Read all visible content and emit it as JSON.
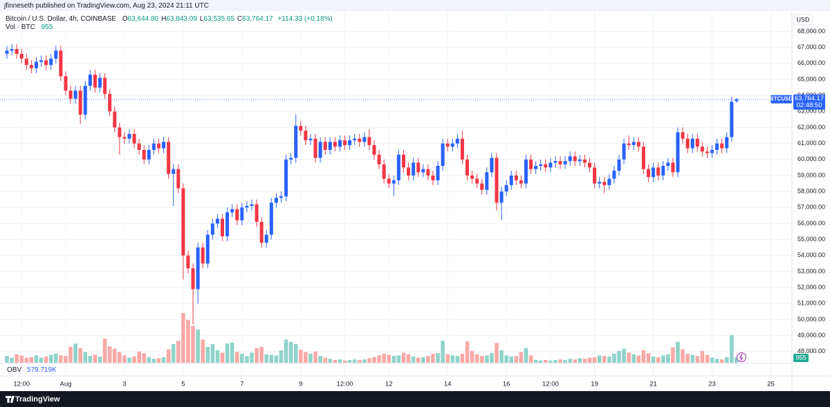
{
  "header": {
    "publisher": "jfinneseth published on TradingView.com, Aug 23, 2024 21:11 UTC"
  },
  "chart_data": {
    "type": "candlestick",
    "title": "Bitcoin / U.S. Dollar, 4h, COINBASE",
    "ohlc_labels": [
      {
        "key": "O",
        "value": "63,644.80"
      },
      {
        "key": "H",
        "value": "63,843.09"
      },
      {
        "key": "L",
        "value": "63,535.65"
      },
      {
        "key": "C",
        "value": "63,764.17"
      }
    ],
    "change_label": "+114.33 (+0.18%)",
    "currency": "USD",
    "symbol": "BTCUSD",
    "last_price_label": "63,764.17",
    "countdown": "02:48:50",
    "up_color": "#2962ff",
    "down_color": "#f23645",
    "grid": true,
    "open": [
      66600,
      66800,
      66900,
      66600,
      66300,
      65900,
      65700,
      66100,
      66200,
      65900,
      66300,
      66800,
      65200,
      64300,
      63800,
      64300,
      62800,
      64600,
      65300,
      64500,
      65100,
      64100,
      63000,
      62000,
      61400,
      61300,
      61600,
      61000,
      60600,
      60000,
      60600,
      61000,
      60700,
      61100,
      59100,
      59400,
      58200,
      54000,
      53200,
      51900,
      54500,
      53500,
      55300,
      56000,
      56300,
      55200,
      56700,
      56900,
      56200,
      57000,
      57100,
      57200,
      56100,
      54800,
      55300,
      57300,
      57600,
      57700,
      60000,
      60100,
      62100,
      61800,
      61200,
      61300,
      60100,
      61100,
      60600,
      61100,
      60800,
      61200,
      60900,
      61200,
      61300,
      61100,
      61400,
      60900,
      60300,
      59700,
      58800,
      58500,
      58700,
      60300,
      59500,
      59000,
      59800,
      59200,
      59400,
      59000,
      58700,
      59600,
      61000,
      60800,
      61000,
      61300,
      60000,
      59000,
      58800,
      58500,
      58100,
      59200,
      60100,
      57300,
      58000,
      58400,
      59000,
      58700,
      58500,
      60000,
      59400,
      59600,
      59700,
      59500,
      59800,
      59900,
      59700,
      59900,
      60200,
      59900,
      60000,
      59800,
      59500,
      58500,
      58600,
      58400,
      58800,
      59300,
      60000,
      61000,
      60900,
      61100,
      60800,
      59400,
      58900,
      59500,
      59000,
      59600,
      59800,
      59200,
      61700,
      61300,
      60700,
      61300,
      60800,
      60500,
      60400,
      60600,
      61000,
      60700,
      61400,
      63644.8
    ],
    "high": [
      67100,
      67200,
      67200,
      66900,
      66600,
      66200,
      66400,
      66500,
      66500,
      66600,
      67100,
      67100,
      65500,
      64600,
      64600,
      64600,
      64900,
      65600,
      65600,
      65400,
      65400,
      64400,
      63300,
      62300,
      61700,
      61900,
      61900,
      61300,
      60900,
      60900,
      61300,
      61300,
      61400,
      61400,
      59700,
      59700,
      58500,
      54300,
      53500,
      54800,
      54800,
      55600,
      56300,
      56600,
      56600,
      57000,
      57200,
      57200,
      57300,
      57400,
      57500,
      57500,
      56400,
      55600,
      57600,
      57900,
      58000,
      60300,
      60400,
      62800,
      62400,
      62100,
      61600,
      61600,
      61400,
      61400,
      61400,
      61400,
      61500,
      61500,
      61500,
      61600,
      61600,
      61700,
      61900,
      61200,
      60600,
      60000,
      59100,
      59000,
      60600,
      60600,
      59800,
      60100,
      60100,
      59700,
      59700,
      59300,
      59900,
      61300,
      61300,
      61300,
      61600,
      61800,
      60300,
      59300,
      59100,
      58800,
      59500,
      60400,
      60400,
      58300,
      58700,
      59300,
      59300,
      59000,
      60300,
      60300,
      59900,
      60000,
      60000,
      60100,
      60200,
      60200,
      60200,
      60500,
      60500,
      60300,
      60300,
      60100,
      59800,
      58900,
      58900,
      59100,
      59600,
      60300,
      61300,
      61500,
      61400,
      61400,
      61100,
      59700,
      59800,
      59800,
      59900,
      60100,
      60100,
      62000,
      62000,
      61600,
      61600,
      61600,
      61100,
      60800,
      60900,
      61300,
      61300,
      61700,
      63900,
      63843.09
    ],
    "low": [
      66300,
      66500,
      66300,
      66000,
      65600,
      65400,
      65400,
      65800,
      65600,
      65600,
      66000,
      64900,
      64000,
      63500,
      63500,
      62200,
      62500,
      64300,
      64200,
      64200,
      63800,
      62700,
      61700,
      60300,
      61000,
      61000,
      60700,
      60300,
      59700,
      59700,
      60300,
      60400,
      60400,
      58800,
      57100,
      57900,
      52500,
      52900,
      49700,
      51000,
      53200,
      53200,
      55000,
      55700,
      54900,
      54900,
      56400,
      55900,
      55900,
      56700,
      56800,
      55800,
      54500,
      54500,
      55000,
      57000,
      57300,
      57400,
      59700,
      59800,
      61500,
      60900,
      60900,
      59800,
      59800,
      60300,
      60300,
      60500,
      60500,
      60600,
      60600,
      60900,
      60800,
      60800,
      60600,
      60000,
      59400,
      58500,
      58200,
      57700,
      58400,
      59200,
      58700,
      58700,
      58900,
      58900,
      58700,
      58400,
      58400,
      59300,
      60500,
      60500,
      60700,
      59700,
      58700,
      58500,
      58200,
      57800,
      57800,
      58900,
      56800,
      56200,
      57700,
      58100,
      58400,
      58200,
      58200,
      59100,
      59100,
      59300,
      59200,
      59200,
      59500,
      59400,
      59400,
      59600,
      59600,
      59600,
      59500,
      59200,
      58200,
      58200,
      57900,
      58100,
      58500,
      59000,
      59700,
      60600,
      60600,
      60500,
      59100,
      58600,
      58600,
      58700,
      58700,
      59300,
      58900,
      58900,
      61000,
      60400,
      60400,
      60500,
      60200,
      60100,
      60100,
      60300,
      60400,
      60400,
      61100,
      63535.65
    ],
    "close": [
      66800,
      66900,
      66600,
      66300,
      65900,
      65700,
      66100,
      66200,
      65900,
      66300,
      66800,
      65200,
      64300,
      63800,
      64300,
      62800,
      64600,
      65300,
      64500,
      65100,
      64100,
      63000,
      62000,
      61400,
      61300,
      61600,
      61000,
      60600,
      60000,
      60600,
      61000,
      60700,
      61100,
      59100,
      59400,
      58200,
      54000,
      53200,
      51900,
      54500,
      53500,
      55300,
      56000,
      56300,
      55200,
      56700,
      56900,
      56200,
      57000,
      57100,
      57200,
      56100,
      54800,
      55300,
      57300,
      57600,
      57700,
      60000,
      60100,
      62100,
      61800,
      61200,
      61300,
      60100,
      61100,
      60600,
      61100,
      60800,
      61200,
      60900,
      61200,
      61300,
      61100,
      61400,
      60900,
      60300,
      59700,
      58800,
      58500,
      58700,
      60300,
      59500,
      59000,
      59800,
      59200,
      59400,
      59000,
      58700,
      59600,
      61000,
      60800,
      61000,
      61300,
      60000,
      59000,
      58800,
      58500,
      58100,
      59200,
      60100,
      57300,
      58000,
      58400,
      59000,
      58700,
      58500,
      60000,
      59400,
      59600,
      59700,
      59500,
      59800,
      59900,
      59700,
      59900,
      60200,
      59900,
      60000,
      59800,
      59500,
      58500,
      58600,
      58400,
      58800,
      59300,
      60000,
      61000,
      60900,
      61100,
      60800,
      59400,
      58900,
      59500,
      59000,
      59600,
      59800,
      59200,
      61700,
      61300,
      60700,
      61300,
      60800,
      60500,
      60400,
      60600,
      61000,
      60700,
      61400,
      63600,
      63764.17
    ],
    "volume": {
      "name": "Vol · BTC",
      "up_color": "#8fd3c9",
      "down_color": "#f7a9a7",
      "values": [
        1200,
        900,
        1500,
        1300,
        900,
        1000,
        1300,
        900,
        1100,
        1400,
        1600,
        1300,
        1200,
        2800,
        3400,
        2600,
        1900,
        1200,
        1400,
        1100,
        4300,
        2900,
        2500,
        1900,
        1300,
        900,
        1100,
        2000,
        1700,
        1000,
        700,
        800,
        1000,
        2400,
        3300,
        3900,
        8800,
        7600,
        6500,
        5900,
        4100,
        2800,
        3300,
        2200,
        1800,
        3400,
        3600,
        1900,
        1600,
        1200,
        1800,
        2600,
        2800,
        1500,
        1400,
        1300,
        2200,
        4100,
        3700,
        3300,
        2300,
        1900,
        1600,
        2000,
        1200,
        900,
        700,
        500,
        600,
        400,
        500,
        600,
        500,
        600,
        800,
        1000,
        1300,
        1600,
        1400,
        1200,
        1300,
        1800,
        1500,
        1100,
        900,
        1000,
        1200,
        1600,
        1700,
        3900,
        1500,
        1300,
        1200,
        1600,
        3800,
        2100,
        1500,
        1200,
        1300,
        1700,
        3500,
        2200,
        1300,
        1100,
        1200,
        1900,
        2600,
        1300,
        500,
        400,
        500,
        400,
        500,
        600,
        500,
        700,
        600,
        800,
        700,
        900,
        1000,
        1300,
        1200,
        1100,
        1600,
        2100,
        2500,
        1800,
        1500,
        1300,
        2200,
        1700,
        1100,
        1000,
        1300,
        1500,
        2700,
        3700,
        2400,
        1600,
        1400,
        1200,
        2100,
        1400,
        900,
        700,
        600,
        1000,
        4900,
        955
      ]
    },
    "indicator": {
      "name": "OBV",
      "value_label": "579.719K"
    },
    "ylim": [
      47300,
      69100
    ],
    "yticks": [
      {
        "value": 48000,
        "label": "48,000.00"
      },
      {
        "value": 49000,
        "label": "49,000.00"
      },
      {
        "value": 50000,
        "label": "50,000.00"
      },
      {
        "value": 51000,
        "label": "51,000.00"
      },
      {
        "value": 52000,
        "label": "52,000.00"
      },
      {
        "value": 53000,
        "label": "53,000.00"
      },
      {
        "value": 54000,
        "label": "54,000.00"
      },
      {
        "value": 55000,
        "label": "55,000.00"
      },
      {
        "value": 56000,
        "label": "56,000.00"
      },
      {
        "value": 57000,
        "label": "57,000.00"
      },
      {
        "value": 58000,
        "label": "58,000.00"
      },
      {
        "value": 59000,
        "label": "59,000.00"
      },
      {
        "value": 60000,
        "label": "60,000.00"
      },
      {
        "value": 61000,
        "label": "61,000.00"
      },
      {
        "value": 62000,
        "label": "62,000.00"
      },
      {
        "value": 63000,
        "label": "63,000.00"
      },
      {
        "value": 64000,
        "label": "64,000.00"
      },
      {
        "value": 65000,
        "label": "65,000.00"
      },
      {
        "value": 66000,
        "label": "66,000.00"
      },
      {
        "value": 67000,
        "label": "67,000.00"
      },
      {
        "value": 68000,
        "label": "68,000.00"
      }
    ],
    "xticks": [
      {
        "value": 3,
        "label": "12:00"
      },
      {
        "value": 12,
        "label": "Aug"
      },
      {
        "value": 24,
        "label": "3"
      },
      {
        "value": 36,
        "label": "5"
      },
      {
        "value": 48,
        "label": "7"
      },
      {
        "value": 60,
        "label": "9"
      },
      {
        "value": 69,
        "label": "12:00"
      },
      {
        "value": 78,
        "label": "12"
      },
      {
        "value": 90,
        "label": "14"
      },
      {
        "value": 102,
        "label": "16"
      },
      {
        "value": 111,
        "label": "12:00"
      },
      {
        "value": 120,
        "label": "19"
      },
      {
        "value": 132,
        "label": "21"
      },
      {
        "value": 144,
        "label": "23"
      },
      {
        "value": 156,
        "label": "25"
      }
    ]
  },
  "footer": {
    "brand": "TradingView"
  }
}
